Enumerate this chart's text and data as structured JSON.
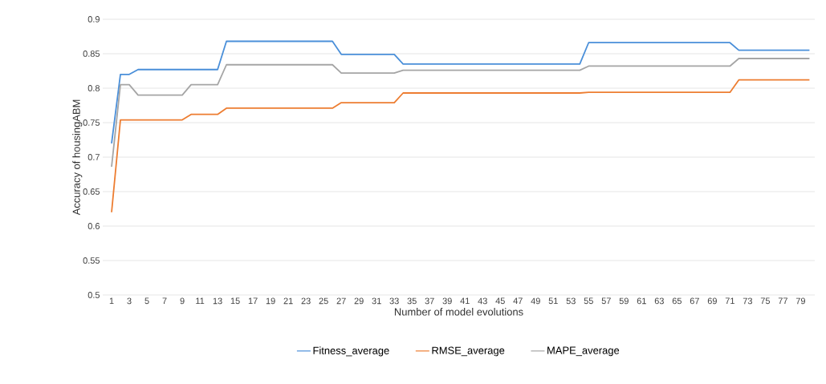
{
  "chart_data": {
    "type": "line",
    "xlabel": "Number of model evolutions",
    "ylabel": "Accuracy of housingABM",
    "categories": [
      "1",
      null,
      "3",
      null,
      "5",
      null,
      "7",
      null,
      "9",
      null,
      "11",
      null,
      "13",
      null,
      "15",
      null,
      "17",
      null,
      "19",
      null,
      "21",
      null,
      "23",
      null,
      "25",
      null,
      "27",
      null,
      "29",
      null,
      "31",
      null,
      "33",
      null,
      "35",
      null,
      "37",
      null,
      "39",
      null,
      "41",
      null,
      "43",
      null,
      "45",
      null,
      "47",
      null,
      "49",
      null,
      "51",
      null,
      "53",
      null,
      "55",
      null,
      "57",
      null,
      "59",
      null,
      "61",
      null,
      "63",
      null,
      "65",
      null,
      "67",
      null,
      "69",
      null,
      "71",
      null,
      "73",
      null,
      "75",
      null,
      "77",
      null,
      "79",
      null
    ],
    "series": [
      {
        "name": "Fitness_average",
        "color": "#4a8fd9",
        "values": [
          0.72,
          0.82,
          0.82,
          0.827,
          0.827,
          0.827,
          0.827,
          0.827,
          0.827,
          0.827,
          0.827,
          0.827,
          0.827,
          0.868,
          0.868,
          0.868,
          0.868,
          0.868,
          0.868,
          0.868,
          0.868,
          0.868,
          0.868,
          0.868,
          0.868,
          0.868,
          0.849,
          0.849,
          0.849,
          0.849,
          0.849,
          0.849,
          0.849,
          0.835,
          0.835,
          0.835,
          0.835,
          0.835,
          0.835,
          0.835,
          0.835,
          0.835,
          0.835,
          0.835,
          0.835,
          0.835,
          0.835,
          0.835,
          0.835,
          0.835,
          0.835,
          0.835,
          0.835,
          0.835,
          0.866,
          0.866,
          0.866,
          0.866,
          0.866,
          0.866,
          0.866,
          0.866,
          0.866,
          0.866,
          0.866,
          0.866,
          0.866,
          0.866,
          0.866,
          0.866,
          0.866,
          0.855,
          0.855,
          0.855,
          0.855,
          0.855,
          0.855,
          0.855,
          0.855,
          0.855
        ]
      },
      {
        "name": "RMSE_average",
        "color": "#ed7d31",
        "values": [
          0.62,
          0.754,
          0.754,
          0.754,
          0.754,
          0.754,
          0.754,
          0.754,
          0.754,
          0.762,
          0.762,
          0.762,
          0.762,
          0.771,
          0.771,
          0.771,
          0.771,
          0.771,
          0.771,
          0.771,
          0.771,
          0.771,
          0.771,
          0.771,
          0.771,
          0.771,
          0.779,
          0.779,
          0.779,
          0.779,
          0.779,
          0.779,
          0.779,
          0.793,
          0.793,
          0.793,
          0.793,
          0.793,
          0.793,
          0.793,
          0.793,
          0.793,
          0.793,
          0.793,
          0.793,
          0.793,
          0.793,
          0.793,
          0.793,
          0.793,
          0.793,
          0.793,
          0.793,
          0.793,
          0.794,
          0.794,
          0.794,
          0.794,
          0.794,
          0.794,
          0.794,
          0.794,
          0.794,
          0.794,
          0.794,
          0.794,
          0.794,
          0.794,
          0.794,
          0.794,
          0.794,
          0.812,
          0.812,
          0.812,
          0.812,
          0.812,
          0.812,
          0.812,
          0.812,
          0.812
        ]
      },
      {
        "name": "MAPE_average",
        "color": "#a5a5a5",
        "values": [
          0.686,
          0.805,
          0.805,
          0.79,
          0.79,
          0.79,
          0.79,
          0.79,
          0.79,
          0.805,
          0.805,
          0.805,
          0.805,
          0.834,
          0.834,
          0.834,
          0.834,
          0.834,
          0.834,
          0.834,
          0.834,
          0.834,
          0.834,
          0.834,
          0.834,
          0.834,
          0.822,
          0.822,
          0.822,
          0.822,
          0.822,
          0.822,
          0.822,
          0.826,
          0.826,
          0.826,
          0.826,
          0.826,
          0.826,
          0.826,
          0.826,
          0.826,
          0.826,
          0.826,
          0.826,
          0.826,
          0.826,
          0.826,
          0.826,
          0.826,
          0.826,
          0.826,
          0.826,
          0.826,
          0.832,
          0.832,
          0.832,
          0.832,
          0.832,
          0.832,
          0.832,
          0.832,
          0.832,
          0.832,
          0.832,
          0.832,
          0.832,
          0.832,
          0.832,
          0.832,
          0.832,
          0.843,
          0.843,
          0.843,
          0.843,
          0.843,
          0.843,
          0.843,
          0.843,
          0.843
        ]
      }
    ],
    "ylim": [
      0.5,
      0.9
    ],
    "yticks": [
      0.5,
      0.55,
      0.6,
      0.65,
      0.7,
      0.75,
      0.8,
      0.85,
      0.9
    ],
    "grid": "y",
    "legend": "bottom",
    "marker": "none",
    "line_style": "solid"
  }
}
